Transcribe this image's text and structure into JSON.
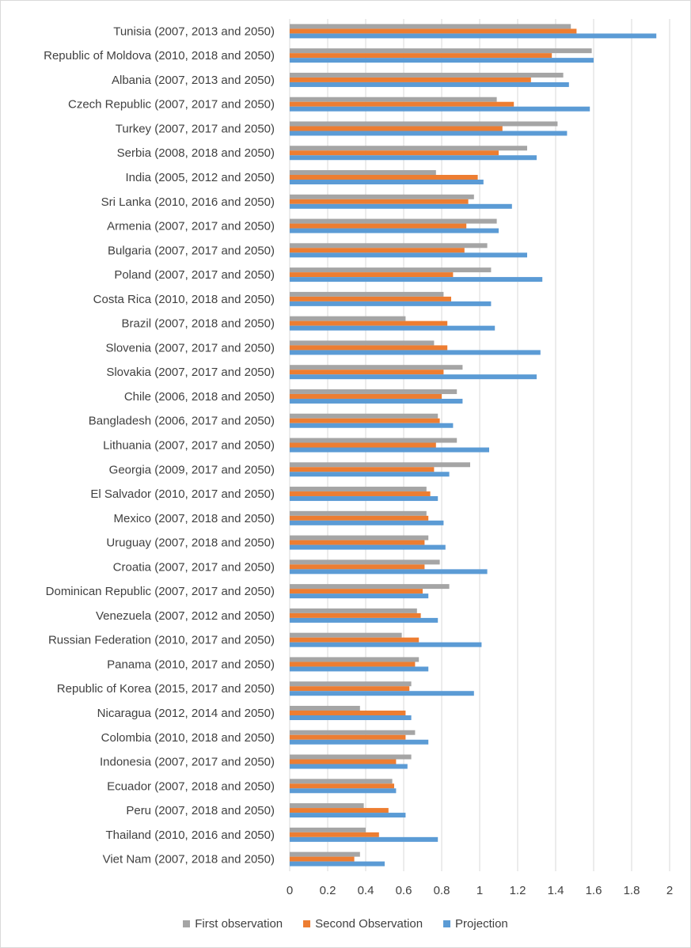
{
  "chart_data": {
    "type": "bar",
    "orientation": "horizontal",
    "categories": [
      "Tunisia (2007, 2013 and 2050)",
      "Republic of Moldova (2010, 2018 and 2050)",
      "Albania (2007, 2013 and 2050)",
      "Czech Republic (2007, 2017 and 2050)",
      "Turkey (2007, 2017 and 2050)",
      "Serbia (2008, 2018 and 2050)",
      "India (2005, 2012 and 2050)",
      "Sri Lanka (2010, 2016 and 2050)",
      "Armenia (2007, 2017 and 2050)",
      "Bulgaria (2007, 2017 and 2050)",
      "Poland (2007, 2017 and 2050)",
      "Costa Rica (2010, 2018 and 2050)",
      "Brazil (2007, 2018 and 2050)",
      "Slovenia (2007, 2017 and 2050)",
      "Slovakia (2007, 2017 and 2050)",
      "Chile (2006, 2018 and 2050)",
      "Bangladesh (2006, 2017 and 2050)",
      "Lithuania (2007, 2017 and 2050)",
      "Georgia (2009, 2017 and 2050)",
      "El Salvador (2010, 2017 and 2050)",
      "Mexico (2007, 2018 and 2050)",
      "Uruguay (2007, 2018 and 2050)",
      "Croatia (2007, 2017 and 2050)",
      "Dominican Republic (2007, 2017 and 2050)",
      "Venezuela (2007, 2012 and 2050)",
      "Russian Federation (2010, 2017 and 2050)",
      "Panama (2010, 2017 and 2050)",
      "Republic of Korea (2015, 2017 and 2050)",
      "Nicaragua (2012, 2014 and 2050)",
      "Colombia (2010, 2018 and 2050)",
      "Indonesia (2007, 2017 and 2050)",
      "Ecuador (2007, 2018 and 2050)",
      "Peru (2007, 2018 and 2050)",
      "Thailand (2010, 2016 and 2050)",
      "Viet Nam (2007, 2018 and 2050)"
    ],
    "series": [
      {
        "name": "First observation",
        "color": "#a5a5a5",
        "values": [
          1.48,
          1.59,
          1.44,
          1.09,
          1.41,
          1.25,
          0.77,
          0.97,
          1.09,
          1.04,
          1.06,
          0.81,
          0.61,
          0.76,
          0.91,
          0.88,
          0.78,
          0.88,
          0.95,
          0.72,
          0.72,
          0.73,
          0.79,
          0.84,
          0.67,
          0.59,
          0.68,
          0.64,
          0.37,
          0.66,
          0.64,
          0.54,
          0.39,
          0.4,
          0.37
        ]
      },
      {
        "name": "Second Observation",
        "color": "#ed7d31",
        "values": [
          1.51,
          1.38,
          1.27,
          1.18,
          1.12,
          1.1,
          0.99,
          0.94,
          0.93,
          0.92,
          0.86,
          0.85,
          0.83,
          0.83,
          0.81,
          0.8,
          0.79,
          0.77,
          0.76,
          0.74,
          0.73,
          0.71,
          0.71,
          0.7,
          0.69,
          0.68,
          0.66,
          0.63,
          0.61,
          0.61,
          0.56,
          0.55,
          0.52,
          0.47,
          0.34
        ]
      },
      {
        "name": "Projection",
        "color": "#5b9bd5",
        "values": [
          1.93,
          1.6,
          1.47,
          1.58,
          1.46,
          1.3,
          1.02,
          1.17,
          1.1,
          1.25,
          1.33,
          1.06,
          1.08,
          1.32,
          1.3,
          0.91,
          0.86,
          1.05,
          0.84,
          0.78,
          0.81,
          0.82,
          1.04,
          0.73,
          0.78,
          1.01,
          0.73,
          0.97,
          0.64,
          0.73,
          0.62,
          0.56,
          0.61,
          0.78,
          0.5
        ]
      }
    ],
    "xlim": [
      0,
      2
    ],
    "xticks": [
      "0",
      "0.2",
      "0.4",
      "0.6",
      "0.8",
      "1",
      "1.2",
      "1.4",
      "1.6",
      "1.8",
      "2"
    ],
    "grid": true,
    "legend_position": "bottom",
    "title": "",
    "xlabel": "",
    "ylabel": ""
  }
}
